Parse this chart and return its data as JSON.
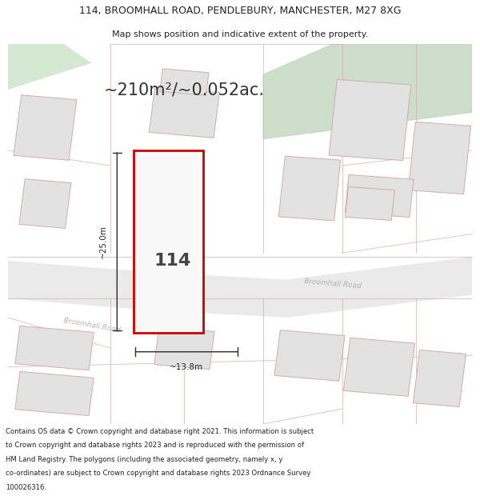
{
  "title_line1": "114, BROOMHALL ROAD, PENDLEBURY, MANCHESTER, M27 8XG",
  "title_line2": "Map shows position and indicative extent of the property.",
  "footer_text": "Contains OS data © Crown copyright and database right 2021. This information is subject to Crown copyright and database rights 2023 and is reproduced with the permission of HM Land Registry. The polygons (including the associated geometry, namely x, y co-ordinates) are subject to Crown copyright and database rights 2023 Ordnance Survey 100026316.",
  "area_label": "~210m²/~0.052ac.",
  "house_number": "114",
  "width_label": "~13.8m",
  "height_label": "~25.0m",
  "map_bg": "#f5f5f5",
  "road_label_color": "#b0a8a8",
  "building_fill": "#e2e2e2",
  "building_outline": "#d8aaaa",
  "plot_fill": "#f8f8f8",
  "plot_outline": "#cc0000",
  "green_fill": "#cddecb",
  "dim_color": "#2a2a2a",
  "title_color": "#222222",
  "footer_color": "#222222"
}
